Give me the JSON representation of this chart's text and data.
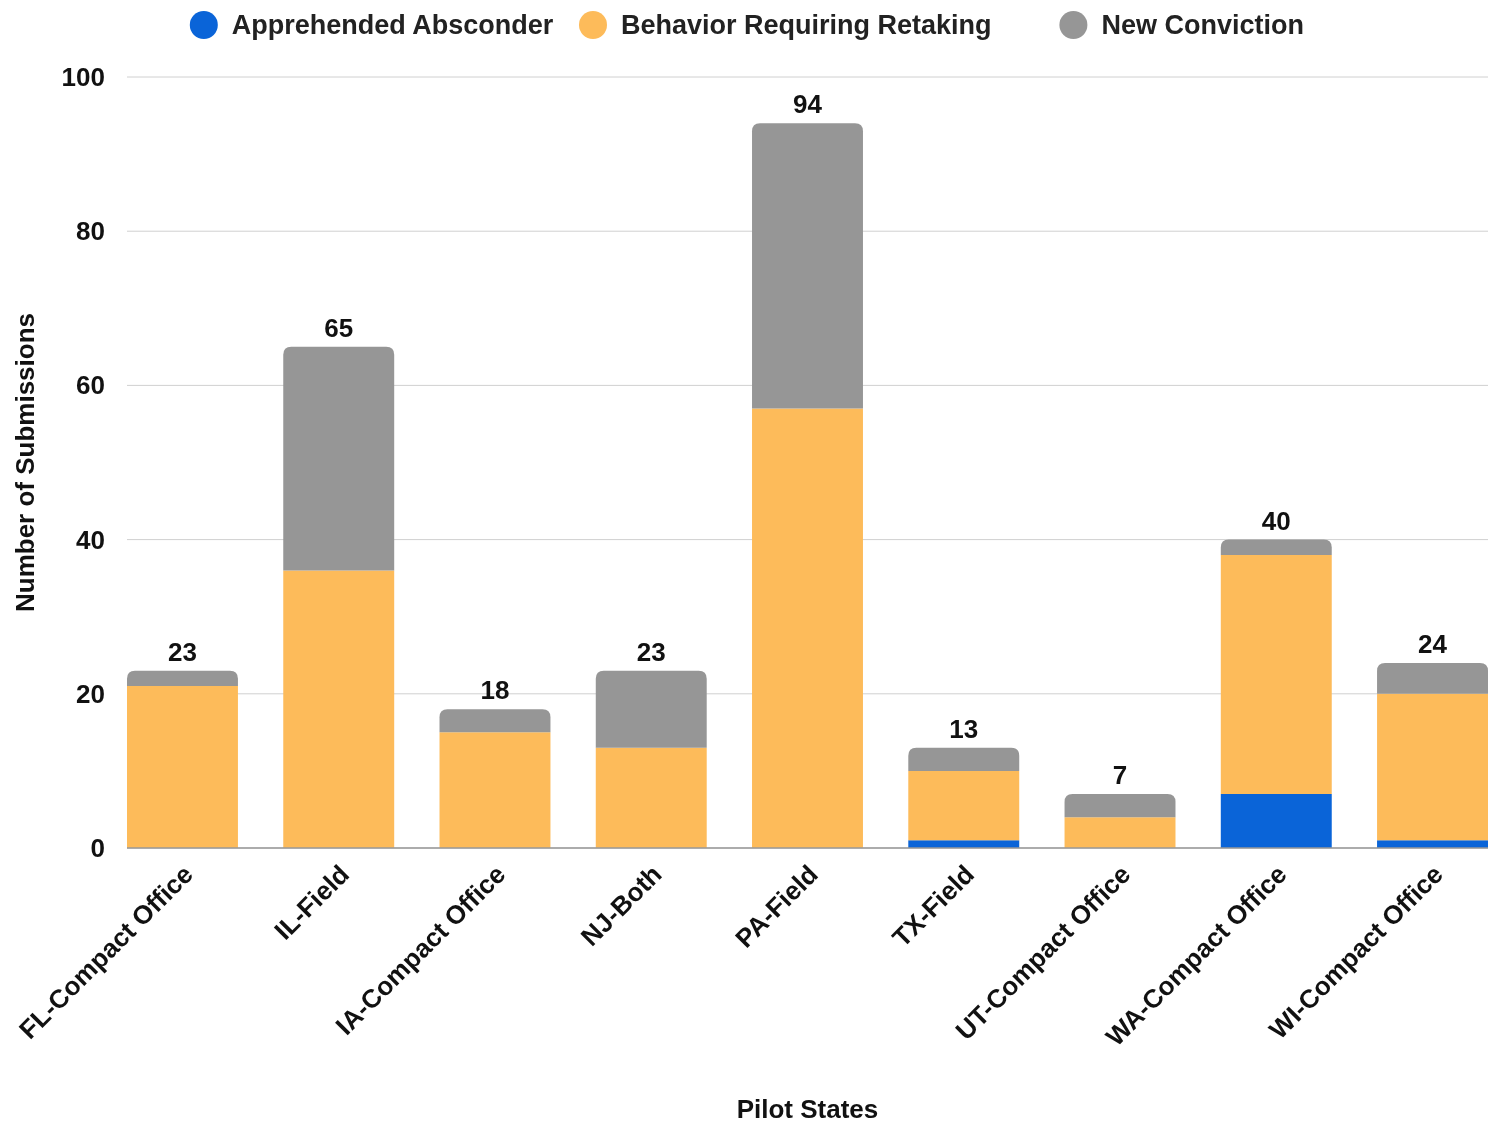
{
  "chart_data": {
    "type": "bar",
    "stacked": true,
    "xlabel": "Pilot States",
    "ylabel": "Number of Submissions",
    "categories": [
      "FL-Compact Office",
      "IL-Field",
      "IA-Compact Office",
      "NJ-Both",
      "PA-Field",
      "TX-Field",
      "UT-Compact Office",
      "WA-Compact Office",
      "WI-Compact Office"
    ],
    "series": [
      {
        "name": "Apprehended Absconder",
        "color": "#0a64d8",
        "values": [
          0,
          0,
          0,
          0,
          0,
          1,
          0,
          7,
          1
        ]
      },
      {
        "name": "Behavior Requiring Retaking",
        "color": "#fdbb5a",
        "values": [
          21,
          36,
          15,
          13,
          57,
          9,
          4,
          31,
          19
        ]
      },
      {
        "name": "New Conviction",
        "color": "#969696",
        "values": [
          2,
          29,
          3,
          10,
          37,
          3,
          3,
          2,
          4
        ]
      }
    ],
    "totals": [
      "23",
      "65",
      "18",
      "23",
      "94",
      "13",
      "7",
      "40",
      "24"
    ],
    "ylim": [
      0,
      100
    ],
    "yticks": [
      0,
      20,
      40,
      60,
      80,
      100
    ],
    "grid": "y",
    "legend": "top"
  }
}
